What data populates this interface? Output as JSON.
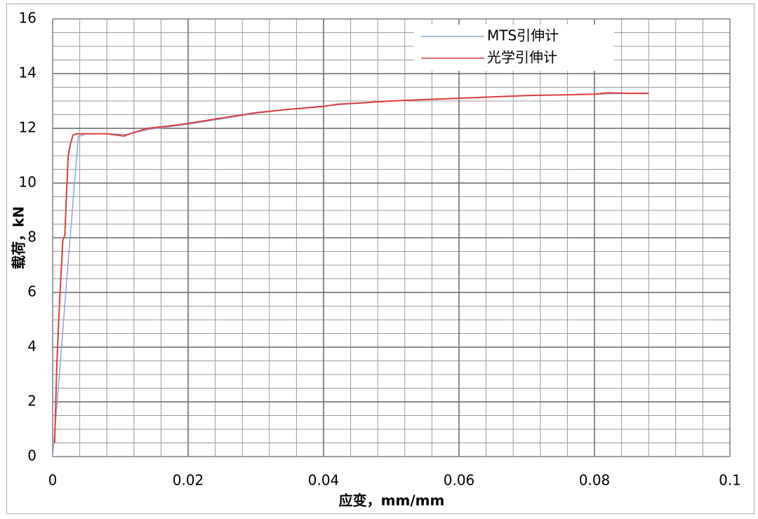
{
  "chart_data": {
    "type": "line",
    "x_label": "应变，mm/mm",
    "y_label": "载荷，kN",
    "xlim": [
      0,
      0.1
    ],
    "xticks": [
      0,
      0.02,
      0.04,
      0.06,
      0.08,
      0.1
    ],
    "ylim": [
      0,
      16
    ],
    "yticks": [
      0,
      2,
      4,
      6,
      8,
      10,
      12,
      14,
      16
    ],
    "xminorticks": [
      0,
      0.004,
      0.008,
      0.012,
      0.016,
      0.02,
      0.024,
      0.028,
      0.032,
      0.036,
      0.04,
      0.044,
      0.048,
      0.052,
      0.056,
      0.06,
      0.064,
      0.068,
      0.072,
      0.076,
      0.08,
      0.084,
      0.088,
      0.092,
      0.096,
      0.1
    ],
    "yminorticks": [
      0,
      0.5,
      1,
      1.5,
      2,
      2.5,
      3,
      3.5,
      4,
      4.5,
      5,
      5.5,
      6,
      6.5,
      7,
      7.5,
      8,
      8.5,
      9,
      9.5,
      10,
      10.5,
      11,
      11.5,
      12,
      12.5,
      13,
      13.5,
      14,
      14.5,
      15,
      15.5,
      16
    ],
    "grid": true,
    "legend": "upper right",
    "series": [
      {
        "name": "MTS引伸计",
        "color": "#8aa4d6",
        "x": [
          0,
          0.001,
          0.002,
          0.003,
          0.0038,
          0.005,
          0.008,
          0.011,
          0.014,
          0.017,
          0.02,
          0.025,
          0.03,
          0.035,
          0.04,
          0.045,
          0.05,
          0.055,
          0.06,
          0.065,
          0.07,
          0.075,
          0.08,
          0.085,
          0.088
        ],
        "values": [
          0,
          3,
          6.2,
          9.3,
          11.7,
          11.8,
          11.8,
          11.78,
          11.95,
          12.05,
          12.15,
          12.35,
          12.55,
          12.7,
          12.82,
          12.92,
          13.0,
          13.06,
          13.1,
          13.15,
          13.2,
          13.22,
          13.25,
          13.28,
          13.3
        ]
      },
      {
        "name": "光学引伸计",
        "color": "#e03c3c",
        "x": [
          0.0003,
          0.0004,
          0.0006,
          0.0009,
          0.0012,
          0.0015,
          0.0018,
          0.002,
          0.0023,
          0.0026,
          0.003,
          0.0035,
          0.005,
          0.008,
          0.0105,
          0.012,
          0.014,
          0.017,
          0.02,
          0.025,
          0.03,
          0.035,
          0.04,
          0.042,
          0.045,
          0.05,
          0.055,
          0.06,
          0.065,
          0.07,
          0.075,
          0.08,
          0.082,
          0.085,
          0.088
        ],
        "values": [
          0.5,
          1.5,
          3.2,
          5,
          6.5,
          7.9,
          8.1,
          9.3,
          11.0,
          11.4,
          11.75,
          11.8,
          11.8,
          11.8,
          11.72,
          11.85,
          12.0,
          12.08,
          12.18,
          12.38,
          12.57,
          12.7,
          12.8,
          12.88,
          12.92,
          13.0,
          13.05,
          13.1,
          13.15,
          13.2,
          13.22,
          13.25,
          13.3,
          13.28,
          13.28
        ]
      }
    ]
  }
}
